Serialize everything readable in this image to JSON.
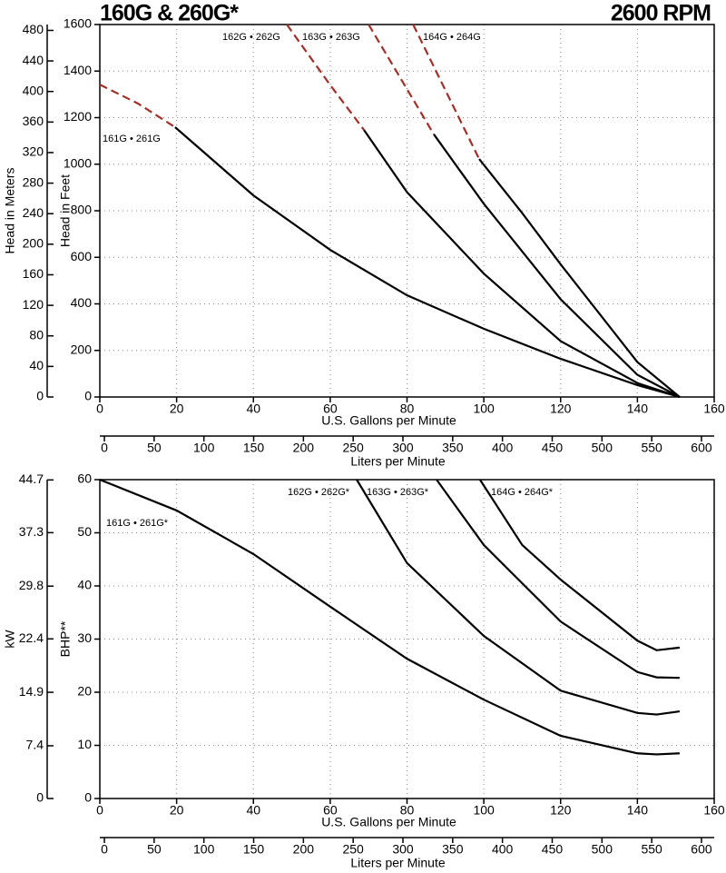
{
  "chart_data": [
    {
      "type": "line",
      "title": "160G & 260G*",
      "subtitle": "2600 RPM",
      "xlabel": "U.S. Gallons per Minute",
      "ylabel": "Head in Feet",
      "y2label": "Head in Meters",
      "x2label": "Liters per Minute",
      "xlim": [
        0,
        160
      ],
      "xticks": [
        0,
        20,
        40,
        60,
        80,
        100,
        120,
        140,
        160
      ],
      "ylim": [
        0,
        1600
      ],
      "yticks": [
        0,
        200,
        400,
        600,
        800,
        1000,
        1200,
        1400,
        1600
      ],
      "y2lim": [
        0,
        487.68
      ],
      "y2ticks": [
        0,
        40,
        80,
        120,
        160,
        200,
        240,
        280,
        320,
        360,
        400,
        440,
        480
      ],
      "x2lim": [
        -4.6,
        612.8
      ],
      "x2ticks": [
        0,
        50,
        100,
        150,
        200,
        250,
        300,
        350,
        400,
        450,
        500,
        550,
        600
      ],
      "grid": true,
      "series": [
        {
          "name": "161G • 261G",
          "color": "#000000",
          "x": [
            19.6,
            40,
            60,
            80,
            100,
            120,
            140,
            151
          ],
          "values": [
            1159,
            866,
            632,
            437,
            293,
            164,
            51,
            0
          ],
          "dashed": {
            "color": "#a0302a",
            "x": [
              0,
              10,
              19.6
            ],
            "values": [
              1342,
              1260,
              1159
            ]
          }
        },
        {
          "name": "162G • 262G",
          "color": "#000000",
          "x": [
            68.8,
            80,
            100,
            120,
            140,
            151
          ],
          "values": [
            1147,
            880,
            530,
            240,
            60,
            0
          ],
          "dashed": {
            "color": "#a0302a",
            "x": [
              48.7,
              60,
              68.8
            ],
            "values": [
              1600,
              1340,
              1147
            ]
          }
        },
        {
          "name": "163G • 263G",
          "color": "#000000",
          "x": [
            87,
            100,
            120,
            140,
            151
          ],
          "values": [
            1128,
            830,
            420,
            95,
            0
          ],
          "dashed": {
            "color": "#a0302a",
            "x": [
              70,
              87
            ],
            "values": [
              1600,
              1128
            ]
          }
        },
        {
          "name": "164G • 264G",
          "color": "#000000",
          "x": [
            98.8,
            110,
            120,
            140,
            151
          ],
          "values": [
            1022,
            790,
            570,
            150,
            0
          ],
          "dashed": {
            "color": "#a0302a",
            "x": [
              81.6,
              98.8
            ],
            "values": [
              1600,
              1022
            ]
          }
        }
      ]
    },
    {
      "type": "line",
      "xlabel": "U.S. Gallons per Minute",
      "ylabel": "BHP**",
      "y2label": "kW",
      "x2label": "Liters per Minute",
      "xlim": [
        0,
        160
      ],
      "xticks": [
        0,
        20,
        40,
        60,
        80,
        100,
        120,
        140,
        160
      ],
      "ylim": [
        0,
        60
      ],
      "yticks": [
        0,
        10,
        20,
        30,
        40,
        50,
        60
      ],
      "y2lim": [
        0,
        44.74
      ],
      "y2ticks": [
        0,
        7.4,
        14.9,
        22.4,
        29.8,
        37.3,
        44.7
      ],
      "x2lim": [
        -4.6,
        612.8
      ],
      "x2ticks": [
        0,
        50,
        100,
        150,
        200,
        250,
        300,
        350,
        400,
        450,
        500,
        550,
        600
      ],
      "grid": true,
      "series": [
        {
          "name": "161G • 261G*",
          "color": "#000000",
          "x": [
            0,
            20,
            40,
            60,
            80,
            100,
            120,
            140,
            145,
            151
          ],
          "values": [
            60,
            54.2,
            46,
            36.1,
            26.3,
            18.6,
            11.8,
            8.5,
            8.3,
            8.5
          ]
        },
        {
          "name": "162G • 262G*",
          "color": "#000000",
          "x": [
            66.9,
            80,
            100,
            120,
            140,
            145,
            151
          ],
          "values": [
            60,
            44.3,
            30.6,
            20.3,
            16.1,
            15.8,
            16.4
          ]
        },
        {
          "name": "163G • 263G*",
          "color": "#000000",
          "x": [
            87.7,
            100,
            120,
            140,
            145,
            151
          ],
          "values": [
            60,
            47.7,
            33.3,
            23.8,
            22.8,
            22.7
          ]
        },
        {
          "name": "164G • 264G*",
          "color": "#000000",
          "x": [
            99,
            110,
            120,
            140,
            145,
            151
          ],
          "values": [
            60,
            47.7,
            41.2,
            29.7,
            27.9,
            28.4
          ]
        }
      ]
    }
  ]
}
